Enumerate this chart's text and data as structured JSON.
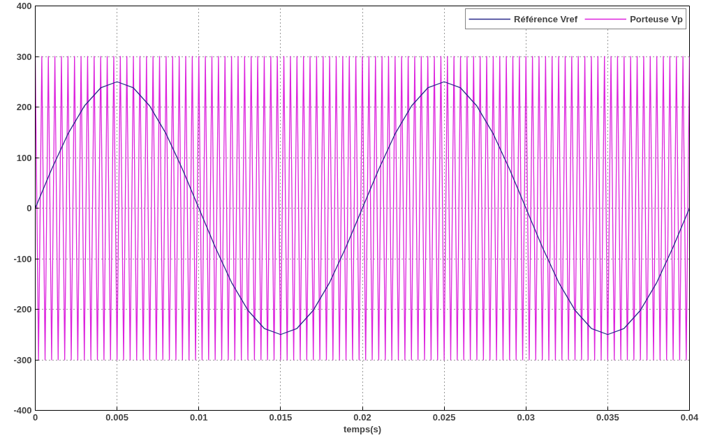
{
  "chart_data": {
    "type": "line",
    "xlabel": "temps(s)",
    "xlim": [
      0,
      0.04
    ],
    "ylim": [
      -400,
      400
    ],
    "xticks": [
      0,
      0.005,
      0.01,
      0.015,
      0.02,
      0.025,
      0.03,
      0.035,
      0.04
    ],
    "yticks": [
      -400,
      -300,
      -200,
      -100,
      0,
      100,
      200,
      300,
      400
    ],
    "grid": true,
    "legend": "top right",
    "line_style": "solid",
    "marker": "none",
    "series": [
      {
        "name": "Référence Vref",
        "color": "#2a2a8a",
        "x": [
          0,
          0.001,
          0.002,
          0.003,
          0.004,
          0.005,
          0.006,
          0.007,
          0.008,
          0.009,
          0.01,
          0.011,
          0.012,
          0.013,
          0.014,
          0.015,
          0.016,
          0.017,
          0.018,
          0.019,
          0.02,
          0.021,
          0.022,
          0.023,
          0.024,
          0.025,
          0.026,
          0.027,
          0.028,
          0.029,
          0.03,
          0.031,
          0.032,
          0.033,
          0.034,
          0.035,
          0.036,
          0.037,
          0.038,
          0.039,
          0.04
        ],
        "values": [
          0,
          77,
          147,
          202,
          238,
          250,
          238,
          202,
          147,
          77,
          0,
          -77,
          -147,
          -202,
          -238,
          -250,
          -238,
          -202,
          -147,
          -77,
          0,
          77,
          147,
          202,
          238,
          250,
          238,
          202,
          147,
          77,
          0,
          -77,
          -147,
          -202,
          -238,
          -250,
          -238,
          -202,
          -147,
          -77,
          0
        ]
      },
      {
        "name": "Porteuse Vp",
        "color": "#dd22dd",
        "x": [
          0,
          0.0002,
          0.0004,
          0.0006,
          0.0008,
          0.001,
          0.0012,
          0.0014,
          0.0016,
          0.0018,
          0.002,
          0.0022,
          0.0024,
          0.0026,
          0.0028,
          0.003,
          0.0032,
          0.0034,
          0.0036,
          0.0038,
          0.004,
          0.0042,
          0.0044,
          0.0046,
          0.0048,
          0.005,
          0.0052,
          0.0054,
          0.0056,
          0.0058,
          0.006,
          0.0062,
          0.0064,
          0.0066,
          0.0068,
          0.007,
          0.0072,
          0.0074,
          0.0076,
          0.0078,
          0.008,
          0.0082,
          0.0084,
          0.0086,
          0.0088,
          0.009,
          0.0092,
          0.0094,
          0.0096,
          0.0098,
          0.01,
          0.0102,
          0.0104,
          0.0106,
          0.0108,
          0.011,
          0.0112,
          0.0114,
          0.0116,
          0.0118,
          0.012,
          0.0122,
          0.0124,
          0.0126,
          0.0128,
          0.013,
          0.0132,
          0.0134,
          0.0136,
          0.0138,
          0.014,
          0.0142,
          0.0144,
          0.0146,
          0.0148,
          0.015,
          0.0152,
          0.0154,
          0.0156,
          0.0158,
          0.016,
          0.0162,
          0.0164,
          0.0166,
          0.0168,
          0.017,
          0.0172,
          0.0174,
          0.0176,
          0.0178,
          0.018,
          0.0182,
          0.0184,
          0.0186,
          0.0188,
          0.019,
          0.0192,
          0.0194,
          0.0196,
          0.0198,
          0.02,
          0.0202,
          0.0204,
          0.0206,
          0.0208,
          0.021,
          0.0212,
          0.0214,
          0.0216,
          0.0218,
          0.022,
          0.0222,
          0.0224,
          0.0226,
          0.0228,
          0.023,
          0.0232,
          0.0234,
          0.0236,
          0.0238,
          0.024,
          0.0242,
          0.0244,
          0.0246,
          0.0248,
          0.025,
          0.0252,
          0.0254,
          0.0256,
          0.0258,
          0.026,
          0.0262,
          0.0264,
          0.0266,
          0.0268,
          0.027,
          0.0272,
          0.0274,
          0.0276,
          0.0278,
          0.028,
          0.0282,
          0.0284,
          0.0286,
          0.0288,
          0.029,
          0.0292,
          0.0294,
          0.0296,
          0.0298,
          0.03,
          0.0302,
          0.0304,
          0.0306,
          0.0308,
          0.031,
          0.0312,
          0.0314,
          0.0316,
          0.0318,
          0.032,
          0.0322,
          0.0324,
          0.0326,
          0.0328,
          0.033,
          0.0332,
          0.0334,
          0.0336,
          0.0338,
          0.034,
          0.0342,
          0.0344,
          0.0346,
          0.0348,
          0.035,
          0.0352,
          0.0354,
          0.0356,
          0.0358,
          0.036,
          0.0362,
          0.0364,
          0.0366,
          0.0368,
          0.037,
          0.0372,
          0.0374,
          0.0376,
          0.0378,
          0.038,
          0.0382,
          0.0384,
          0.0386,
          0.0388,
          0.039,
          0.0392,
          0.0394,
          0.0396,
          0.0398,
          0.04
        ],
        "values": [
          300,
          -300,
          300,
          -300,
          300,
          -300,
          300,
          -300,
          300,
          -300,
          300,
          -300,
          300,
          -300,
          300,
          -300,
          300,
          -300,
          300,
          -300,
          300,
          -300,
          300,
          -300,
          300,
          -300,
          300,
          -300,
          300,
          -300,
          300,
          -300,
          300,
          -300,
          300,
          -300,
          300,
          -300,
          300,
          -300,
          300,
          -300,
          300,
          -300,
          300,
          -300,
          300,
          -300,
          300,
          -300,
          300,
          -300,
          300,
          -300,
          300,
          -300,
          300,
          -300,
          300,
          -300,
          300,
          -300,
          300,
          -300,
          300,
          -300,
          300,
          -300,
          300,
          -300,
          300,
          -300,
          300,
          -300,
          300,
          -300,
          300,
          -300,
          300,
          -300,
          300,
          -300,
          300,
          -300,
          300,
          -300,
          300,
          -300,
          300,
          -300,
          300,
          -300,
          300,
          -300,
          300,
          -300,
          300,
          -300,
          300,
          -300,
          300,
          -300,
          300,
          -300,
          300,
          -300,
          300,
          -300,
          300,
          -300,
          300,
          -300,
          300,
          -300,
          300,
          -300,
          300,
          -300,
          300,
          -300,
          300,
          -300,
          300,
          -300,
          300,
          -300,
          300,
          -300,
          300,
          -300,
          300,
          -300,
          300,
          -300,
          300,
          -300,
          300,
          -300,
          300,
          -300,
          300,
          -300,
          300,
          -300,
          300,
          -300,
          300,
          -300,
          300,
          -300,
          300,
          -300,
          300,
          -300,
          300,
          -300,
          300,
          -300,
          300,
          -300,
          300,
          -300,
          300,
          -300,
          300,
          -300,
          300,
          -300,
          300,
          -300,
          300,
          -300,
          300,
          -300,
          300,
          -300,
          300,
          -300,
          300,
          -300,
          300,
          -300,
          300,
          -300,
          300,
          -300,
          300,
          -300,
          300,
          -300,
          300,
          -300,
          300,
          -300,
          300,
          -300,
          300,
          -300,
          300,
          -300,
          300
        ]
      }
    ]
  }
}
